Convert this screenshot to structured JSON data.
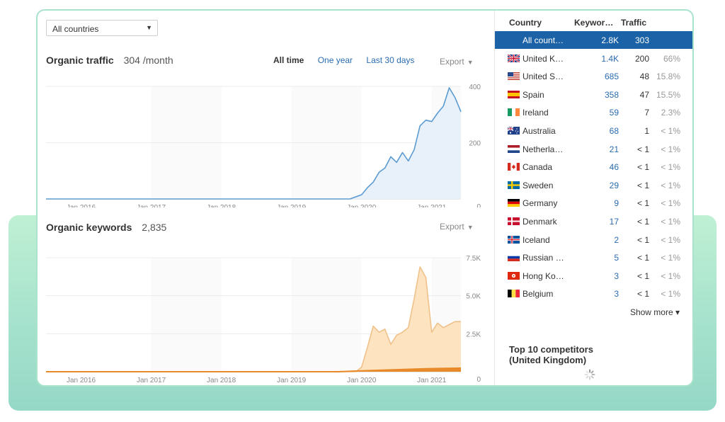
{
  "country_select": {
    "value": "All countries"
  },
  "organic_traffic": {
    "title": "Organic traffic",
    "value": "304 /month",
    "tabs": [
      {
        "label": "All time",
        "active": true
      },
      {
        "label": "One year",
        "active": false
      },
      {
        "label": "Last 30 days",
        "active": false
      }
    ],
    "export_label": "Export"
  },
  "organic_keywords": {
    "title": "Organic keywords",
    "value": "2,835",
    "export_label": "Export"
  },
  "chart_data": [
    {
      "type": "area",
      "name": "organic-traffic",
      "x_tick_labels": [
        "Jan 2016",
        "Jan 2017",
        "Jan 2018",
        "Jan 2019",
        "Jan 2020",
        "Jan 2021"
      ],
      "y_tick_labels": [
        "400",
        "200",
        "0"
      ],
      "ylim": [
        0,
        400
      ],
      "x_range": [
        "2015-07",
        "2021-06"
      ],
      "grid": true,
      "colors": {
        "line": "#5b9bd1",
        "fill": "#e8f1fa"
      },
      "series": [
        {
          "values": [
            [
              "2015-07",
              0
            ],
            [
              "2019-09",
              0
            ],
            [
              "2019-11",
              0
            ],
            [
              "2020-01",
              15
            ],
            [
              "2020-02",
              40
            ],
            [
              "2020-03",
              60
            ],
            [
              "2020-04",
              95
            ],
            [
              "2020-05",
              110
            ],
            [
              "2020-06",
              150
            ],
            [
              "2020-07",
              130
            ],
            [
              "2020-08",
              165
            ],
            [
              "2020-09",
              135
            ],
            [
              "2020-10",
              175
            ],
            [
              "2020-11",
              260
            ],
            [
              "2020-12",
              280
            ],
            [
              "2021-01",
              275
            ],
            [
              "2021-02",
              305
            ],
            [
              "2021-03",
              330
            ],
            [
              "2021-04",
              395
            ],
            [
              "2021-05",
              360
            ],
            [
              "2021-06",
              310
            ]
          ]
        }
      ]
    },
    {
      "type": "area",
      "name": "organic-keywords",
      "x_tick_labels": [
        "Jan 2016",
        "Jan 2017",
        "Jan 2018",
        "Jan 2019",
        "Jan 2020",
        "Jan 2021"
      ],
      "y_tick_labels": [
        "7.5K",
        "5.0K",
        "2.5K",
        "0"
      ],
      "ylim": [
        0,
        7500
      ],
      "x_range": [
        "2015-07",
        "2021-06"
      ],
      "grid": true,
      "colors": {
        "line": "#f0c18a",
        "fill": "#fde3bf",
        "base": "#e8892a"
      },
      "series": [
        {
          "values": [
            [
              "2015-07",
              0
            ],
            [
              "2019-09",
              0
            ],
            [
              "2019-12",
              0
            ],
            [
              "2020-01",
              300
            ],
            [
              "2020-02",
              1600
            ],
            [
              "2020-03",
              3000
            ],
            [
              "2020-04",
              2600
            ],
            [
              "2020-05",
              2800
            ],
            [
              "2020-06",
              1800
            ],
            [
              "2020-07",
              2400
            ],
            [
              "2020-08",
              2600
            ],
            [
              "2020-09",
              2900
            ],
            [
              "2020-10",
              4800
            ],
            [
              "2020-11",
              6900
            ],
            [
              "2020-12",
              6200
            ],
            [
              "2021-01",
              2600
            ],
            [
              "2021-02",
              3200
            ],
            [
              "2021-03",
              2900
            ],
            [
              "2021-04",
              3100
            ],
            [
              "2021-05",
              3300
            ],
            [
              "2021-06",
              3300
            ]
          ]
        },
        {
          "values": [
            [
              "2015-07",
              0
            ],
            [
              "2019-09",
              0
            ],
            [
              "2020-01",
              60
            ],
            [
              "2020-12",
              200
            ],
            [
              "2021-06",
              240
            ]
          ]
        }
      ]
    }
  ],
  "country_table": {
    "headers": {
      "country": "Country",
      "keywords": "Keywor…",
      "traffic": "Traffic"
    },
    "rows": [
      {
        "name": "All count…",
        "keywords": "2.8K",
        "traffic": "303",
        "pct": "",
        "flag": "none",
        "selected": true
      },
      {
        "name": "United K…",
        "keywords": "1.4K",
        "traffic": "200",
        "pct": "66%",
        "flag": "gb"
      },
      {
        "name": "United S…",
        "keywords": "685",
        "traffic": "48",
        "pct": "15.8%",
        "flag": "us"
      },
      {
        "name": "Spain",
        "keywords": "358",
        "traffic": "47",
        "pct": "15.5%",
        "flag": "es"
      },
      {
        "name": "Ireland",
        "keywords": "59",
        "traffic": "7",
        "pct": "2.3%",
        "flag": "ie"
      },
      {
        "name": "Australia",
        "keywords": "68",
        "traffic": "1",
        "pct": "< 1%",
        "flag": "au"
      },
      {
        "name": "Netherla…",
        "keywords": "21",
        "traffic": "< 1",
        "pct": "< 1%",
        "flag": "nl"
      },
      {
        "name": "Canada",
        "keywords": "46",
        "traffic": "< 1",
        "pct": "< 1%",
        "flag": "ca"
      },
      {
        "name": "Sweden",
        "keywords": "29",
        "traffic": "< 1",
        "pct": "< 1%",
        "flag": "se"
      },
      {
        "name": "Germany",
        "keywords": "9",
        "traffic": "< 1",
        "pct": "< 1%",
        "flag": "de"
      },
      {
        "name": "Denmark",
        "keywords": "17",
        "traffic": "< 1",
        "pct": "< 1%",
        "flag": "dk"
      },
      {
        "name": "Iceland",
        "keywords": "2",
        "traffic": "< 1",
        "pct": "< 1%",
        "flag": "is"
      },
      {
        "name": "Russian …",
        "keywords": "5",
        "traffic": "< 1",
        "pct": "< 1%",
        "flag": "ru"
      },
      {
        "name": "Hong Ko…",
        "keywords": "3",
        "traffic": "< 1",
        "pct": "< 1%",
        "flag": "hk"
      },
      {
        "name": "Belgium",
        "keywords": "3",
        "traffic": "< 1",
        "pct": "< 1%",
        "flag": "be"
      }
    ],
    "show_more_label": "Show more ▾"
  },
  "competitors": {
    "title_line1": "Top 10 competitors",
    "title_line2": "(United Kingdom)"
  },
  "icons": {
    "select_caret": "triangle-down",
    "export_caret": "triangle-down",
    "loading": "spinner"
  }
}
